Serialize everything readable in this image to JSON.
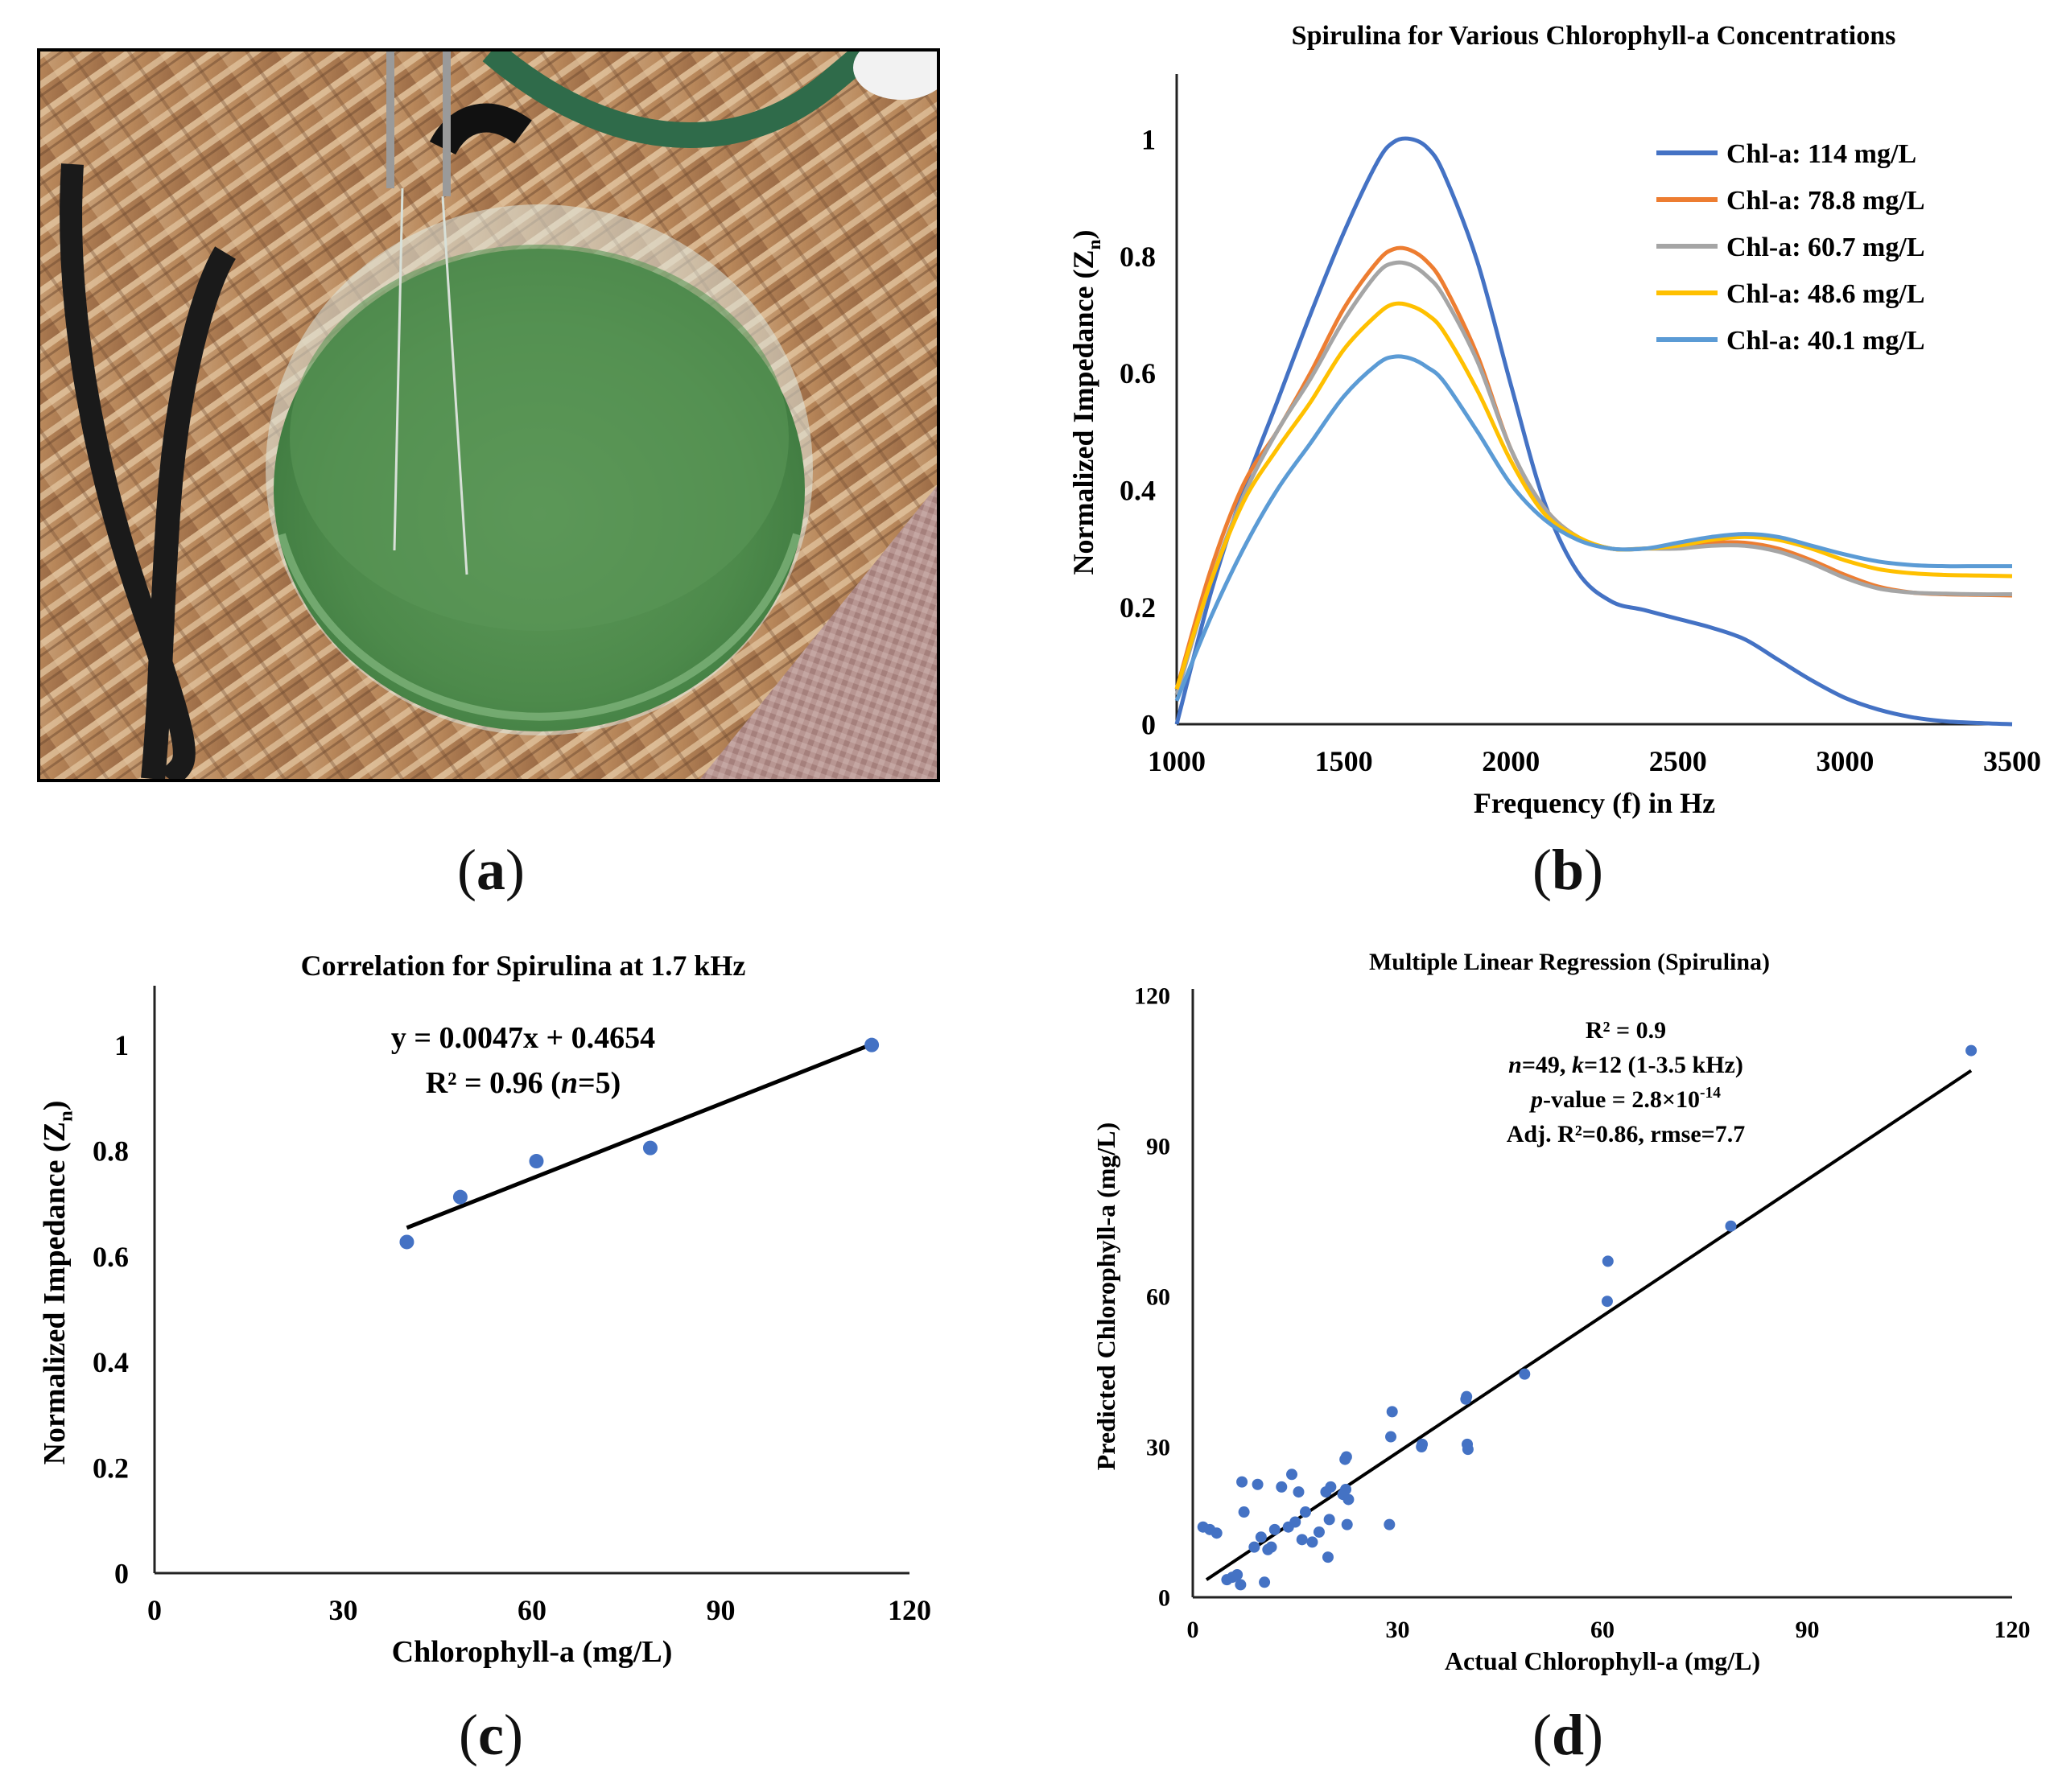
{
  "panels": {
    "a": {
      "label": "a"
    },
    "b": {
      "label": "b"
    },
    "c": {
      "label": "c"
    },
    "d": {
      "label": "d"
    }
  },
  "chart_data": [
    {
      "id": "b",
      "type": "line",
      "title": "Spirulina  for Various Chlorophyll-a  Concentrations",
      "xlabel": "Frequency (f) in Hz",
      "ylabel": "Normalized Impedance (Z",
      "ylabel_sub": "n",
      "ylabel_end": ")",
      "xlim": [
        1000,
        3500
      ],
      "ylim": [
        0,
        1.1
      ],
      "xticks": [
        "1000",
        "1500",
        "2000",
        "2500",
        "3000",
        "3500"
      ],
      "yticks": [
        "0",
        "0.2",
        "0.4",
        "0.6",
        "0.8",
        "1"
      ],
      "legend_position": "top-right",
      "series": [
        {
          "name": "Chl-a: 114 mg/L",
          "color": "#4472C4",
          "x": [
            1000,
            1100,
            1200,
            1300,
            1400,
            1500,
            1600,
            1650,
            1700,
            1750,
            1800,
            1900,
            2000,
            2100,
            2200,
            2300,
            2400,
            2500,
            2600,
            2700,
            2800,
            2900,
            3000,
            3100,
            3200,
            3300,
            3400,
            3500
          ],
          "y": [
            0.0,
            0.22,
            0.4,
            0.55,
            0.7,
            0.84,
            0.96,
            0.995,
            1.0,
            0.985,
            0.94,
            0.79,
            0.58,
            0.38,
            0.26,
            0.21,
            0.195,
            0.18,
            0.165,
            0.145,
            0.11,
            0.075,
            0.045,
            0.025,
            0.012,
            0.005,
            0.002,
            0.0
          ]
        },
        {
          "name": "Chl-a: 78.8 mg/L",
          "color": "#ED7D31",
          "x": [
            1000,
            1100,
            1200,
            1300,
            1400,
            1500,
            1600,
            1650,
            1700,
            1750,
            1800,
            1900,
            2000,
            2100,
            2200,
            2300,
            2400,
            2500,
            2600,
            2700,
            2800,
            2900,
            3000,
            3100,
            3200,
            3300,
            3400,
            3500
          ],
          "y": [
            0.06,
            0.26,
            0.41,
            0.5,
            0.6,
            0.71,
            0.79,
            0.812,
            0.81,
            0.79,
            0.75,
            0.63,
            0.47,
            0.37,
            0.32,
            0.3,
            0.3,
            0.305,
            0.31,
            0.31,
            0.3,
            0.28,
            0.255,
            0.235,
            0.225,
            0.222,
            0.221,
            0.22
          ]
        },
        {
          "name": "Chl-a: 60.7 mg/L",
          "color": "#A5A5A5",
          "x": [
            1000,
            1100,
            1200,
            1300,
            1400,
            1500,
            1600,
            1650,
            1700,
            1750,
            1800,
            1900,
            2000,
            2100,
            2200,
            2300,
            2400,
            2500,
            2600,
            2700,
            2800,
            2900,
            3000,
            3100,
            3200,
            3300,
            3400,
            3500
          ],
          "y": [
            0.05,
            0.24,
            0.39,
            0.5,
            0.59,
            0.69,
            0.77,
            0.788,
            0.785,
            0.765,
            0.73,
            0.62,
            0.47,
            0.37,
            0.32,
            0.3,
            0.3,
            0.3,
            0.305,
            0.305,
            0.295,
            0.275,
            0.25,
            0.232,
            0.225,
            0.223,
            0.222,
            0.222
          ]
        },
        {
          "name": "Chl-a: 48.6 mg/L",
          "color": "#FFC000",
          "x": [
            1000,
            1100,
            1200,
            1300,
            1400,
            1500,
            1600,
            1650,
            1700,
            1750,
            1800,
            1900,
            2000,
            2100,
            2200,
            2300,
            2400,
            2500,
            2600,
            2700,
            2800,
            2900,
            3000,
            3100,
            3200,
            3300,
            3400,
            3500
          ],
          "y": [
            0.06,
            0.24,
            0.38,
            0.47,
            0.55,
            0.64,
            0.7,
            0.718,
            0.715,
            0.7,
            0.67,
            0.57,
            0.45,
            0.36,
            0.32,
            0.3,
            0.3,
            0.305,
            0.315,
            0.32,
            0.315,
            0.3,
            0.28,
            0.265,
            0.258,
            0.255,
            0.254,
            0.253
          ]
        },
        {
          "name": "Chl-a: 40.1 mg/L",
          "color": "#5B9BD5",
          "x": [
            1000,
            1100,
            1200,
            1300,
            1400,
            1500,
            1600,
            1650,
            1700,
            1750,
            1800,
            1900,
            2000,
            2100,
            2200,
            2300,
            2400,
            2500,
            2600,
            2700,
            2800,
            2900,
            3000,
            3100,
            3200,
            3300,
            3400,
            3500
          ],
          "y": [
            0.04,
            0.18,
            0.3,
            0.4,
            0.48,
            0.56,
            0.615,
            0.628,
            0.625,
            0.61,
            0.585,
            0.5,
            0.41,
            0.35,
            0.315,
            0.3,
            0.3,
            0.31,
            0.32,
            0.325,
            0.32,
            0.305,
            0.29,
            0.278,
            0.272,
            0.27,
            0.27,
            0.27
          ]
        }
      ]
    },
    {
      "id": "c",
      "type": "scatter",
      "title": "Correlation for Spirulina  at 1.7 kHz",
      "xlabel": "Chlorophyll-a  (mg/L)",
      "ylabel": "Normalized Impedance (Z",
      "ylabel_sub": "n",
      "ylabel_end": ")",
      "xlim": [
        0,
        120
      ],
      "ylim": [
        0,
        1.1
      ],
      "xticks": [
        "0",
        "30",
        "60",
        "90",
        "120"
      ],
      "yticks": [
        "0",
        "0.2",
        "0.4",
        "0.6",
        "0.8",
        "1"
      ],
      "annotations": [
        "y = 0.0047x + 0.4654",
        "R² = 0.96 (",
        "n",
        "=5)"
      ],
      "trendline": {
        "slope": 0.0047,
        "intercept": 0.4654,
        "x_start": 40.1,
        "x_end": 114
      },
      "points": {
        "x": [
          40.1,
          48.6,
          60.7,
          78.8,
          114
        ],
        "y": [
          0.627,
          0.712,
          0.78,
          0.805,
          1.0
        ]
      },
      "point_color": "#4472C4"
    },
    {
      "id": "d",
      "type": "scatter",
      "title": "Multiple  Linear Regression (Spirulina)",
      "xlabel": "Actual Chlorophyll-a  (mg/L)",
      "ylabel": "Predicted Chlorophyll-a  (mg/L)",
      "xlim": [
        0,
        120
      ],
      "ylim": [
        0,
        120
      ],
      "xticks": [
        "0",
        "30",
        "60",
        "90",
        "120"
      ],
      "yticks": [
        "0",
        "30",
        "60",
        "90",
        "120"
      ],
      "annotations": [
        "R² = 0.9",
        "n",
        "=49, ",
        "k",
        "=12 (1-3.5 kHz)",
        "p",
        "-value = 2.8×10",
        "-14",
        "Adj. R²=0.86, rmse=7.7"
      ],
      "trendline": {
        "x_start": 2,
        "y_start": 3.5,
        "x_end": 114,
        "y_end": 105
      },
      "points": {
        "x": [
          1.5,
          2.5,
          3.5,
          5,
          5.8,
          6.5,
          7,
          7.2,
          7.5,
          9,
          9.5,
          10,
          10.5,
          11,
          11.5,
          12,
          13,
          14,
          14.5,
          15,
          15.5,
          16,
          16.5,
          17.5,
          18.5,
          19.5,
          19.8,
          20,
          20.2,
          22,
          22.3,
          22.5,
          22.6,
          22.8,
          28.8,
          29,
          29.2,
          33.5,
          33.6,
          40,
          40.1,
          40.2,
          40.3,
          48.6,
          60.7,
          60.8,
          78.8,
          114,
          22.4
        ],
        "y": [
          14,
          13.5,
          12.8,
          3.5,
          4,
          4.5,
          2.5,
          23,
          17,
          10,
          22.5,
          12,
          3,
          9.5,
          10,
          13.5,
          22,
          14,
          24.5,
          15,
          21,
          11.5,
          17,
          11,
          13,
          21,
          8,
          15.5,
          22,
          20.5,
          27.5,
          28,
          14.5,
          19.5,
          14.5,
          32,
          37,
          30,
          30.5,
          39.5,
          40,
          30.5,
          29.5,
          44.5,
          59,
          67,
          74,
          109,
          21.5
        ]
      },
      "point_color": "#4472C4"
    }
  ]
}
